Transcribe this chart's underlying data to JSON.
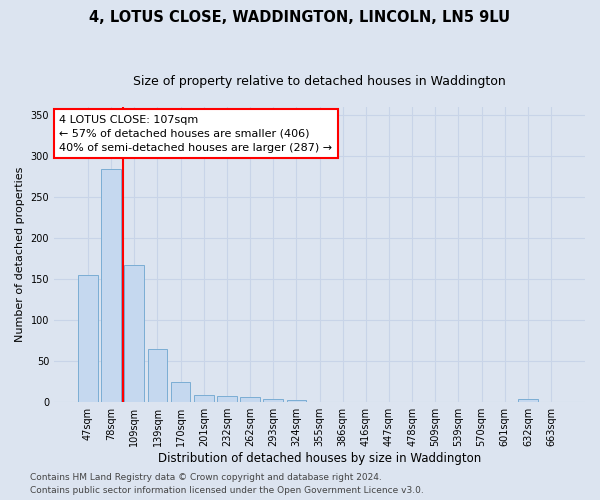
{
  "title": "4, LOTUS CLOSE, WADDINGTON, LINCOLN, LN5 9LU",
  "subtitle": "Size of property relative to detached houses in Waddington",
  "xlabel": "Distribution of detached houses by size in Waddington",
  "ylabel": "Number of detached properties",
  "categories": [
    "47sqm",
    "78sqm",
    "109sqm",
    "139sqm",
    "170sqm",
    "201sqm",
    "232sqm",
    "262sqm",
    "293sqm",
    "324sqm",
    "355sqm",
    "386sqm",
    "416sqm",
    "447sqm",
    "478sqm",
    "509sqm",
    "539sqm",
    "570sqm",
    "601sqm",
    "632sqm",
    "663sqm"
  ],
  "values": [
    155,
    285,
    168,
    65,
    25,
    9,
    7,
    6,
    4,
    3,
    0,
    0,
    0,
    0,
    0,
    0,
    0,
    0,
    0,
    4,
    0
  ],
  "bar_color": "#c5d8ef",
  "bar_edge_color": "#7badd4",
  "bar_linewidth": 0.7,
  "grid_color": "#c8d4e8",
  "background_color": "#dce4f0",
  "annotation_text": "4 LOTUS CLOSE: 107sqm\n← 57% of detached houses are smaller (406)\n40% of semi-detached houses are larger (287) →",
  "annotation_box_color": "white",
  "annotation_box_edgecolor": "red",
  "redline_x": 1.5,
  "ylim": [
    0,
    360
  ],
  "yticks": [
    0,
    50,
    100,
    150,
    200,
    250,
    300,
    350
  ],
  "footer_line1": "Contains HM Land Registry data © Crown copyright and database right 2024.",
  "footer_line2": "Contains public sector information licensed under the Open Government Licence v3.0.",
  "title_fontsize": 10.5,
  "subtitle_fontsize": 9,
  "xlabel_fontsize": 8.5,
  "ylabel_fontsize": 8,
  "tick_fontsize": 7,
  "annotation_fontsize": 8,
  "footer_fontsize": 6.5
}
